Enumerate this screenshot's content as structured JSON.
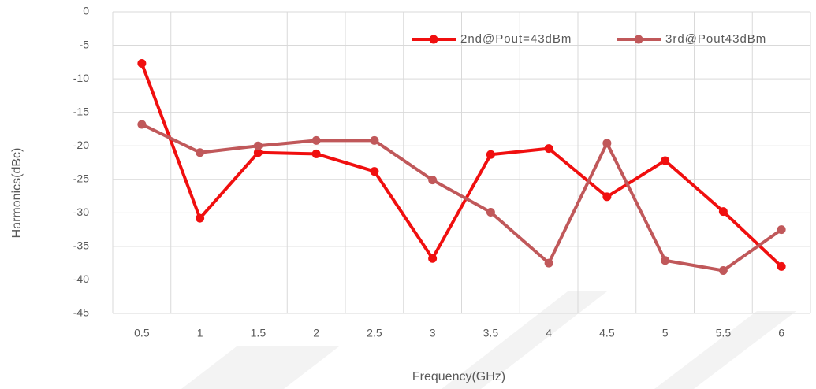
{
  "chart_data": {
    "type": "line",
    "x_label": "Frequency(GHz)",
    "y_label": "Harmonics(dBc)",
    "categories": [
      "0.5",
      "1",
      "1.5",
      "2",
      "2.5",
      "3",
      "3.5",
      "4",
      "4.5",
      "5",
      "5.5",
      "6"
    ],
    "series": [
      {
        "name": "2nd@Pout=43dBm",
        "color": "#f00f0f",
        "values": [
          -7.7,
          -30.8,
          -21,
          -21.2,
          -23.8,
          -36.8,
          -21.3,
          -20.4,
          -27.6,
          -22.2,
          -29.8,
          -38
        ]
      },
      {
        "name": "3rd@Pout43dBm",
        "color": "#c0585a",
        "values": [
          -16.8,
          -21,
          -20,
          -19.2,
          -19.2,
          -25.1,
          -29.9,
          -37.5,
          -19.6,
          -37.1,
          -38.6,
          -32.5
        ]
      }
    ],
    "ylim": [
      -45,
      0
    ],
    "yticks": [
      0,
      -5,
      -10,
      -15,
      -20,
      -25,
      -30,
      -35,
      -40,
      -45
    ],
    "grid": true,
    "legend": "upper right"
  }
}
